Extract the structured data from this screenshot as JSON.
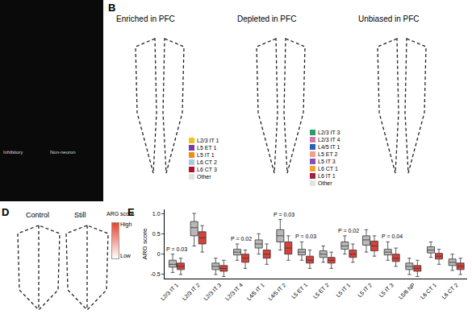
{
  "chart_data": {
    "type": "box",
    "ylabel": "ARG score",
    "categories": [
      "L2/3 IT 1",
      "L2/3 IT 2",
      "L2/3 IT 3",
      "L2/3 IT 4",
      "L4/5 IT 1",
      "L4/5 IT 2",
      "L5 ET 1",
      "L5 ET 2",
      "L5 IT 1",
      "L5 IT 2",
      "L5 IT 3",
      "L5/6 NP",
      "L6 CT 1",
      "L6 CT 2"
    ],
    "series": [
      {
        "name": "Control",
        "color": "#b8b8b8",
        "q1": [
          -0.32,
          0.45,
          -0.38,
          -0.02,
          0.15,
          0.3,
          -0.02,
          -0.08,
          0.12,
          0.22,
          -0.02,
          -0.38,
          0.03,
          -0.28
        ],
        "median": [
          -0.25,
          0.65,
          -0.3,
          0.05,
          0.25,
          0.45,
          0.05,
          0.0,
          0.2,
          0.35,
          0.05,
          -0.3,
          0.1,
          -0.2
        ],
        "q3": [
          -0.15,
          0.8,
          -0.22,
          0.12,
          0.35,
          0.6,
          0.12,
          0.08,
          0.3,
          0.45,
          0.12,
          -0.22,
          0.18,
          -0.12
        ],
        "lowerfence": [
          -0.45,
          0.2,
          -0.5,
          -0.15,
          0.0,
          0.1,
          -0.15,
          -0.2,
          0.0,
          0.05,
          -0.15,
          -0.5,
          -0.08,
          -0.4
        ],
        "upperfence": [
          0.0,
          1.0,
          -0.1,
          0.25,
          0.5,
          0.85,
          0.3,
          0.2,
          0.45,
          0.6,
          0.3,
          -0.1,
          0.3,
          0.0
        ]
      },
      {
        "name": "Still",
        "color": "#d9403a",
        "q1": [
          -0.38,
          0.25,
          -0.42,
          -0.2,
          -0.1,
          0.0,
          -0.22,
          -0.22,
          -0.08,
          0.08,
          -0.18,
          -0.42,
          -0.12,
          -0.38
        ],
        "median": [
          -0.3,
          0.4,
          -0.35,
          -0.1,
          0.0,
          0.15,
          -0.15,
          -0.15,
          0.0,
          0.2,
          -0.1,
          -0.35,
          -0.05,
          -0.3
        ],
        "q3": [
          -0.22,
          0.55,
          -0.28,
          0.0,
          0.1,
          0.3,
          -0.05,
          -0.08,
          0.1,
          0.32,
          0.0,
          -0.28,
          0.02,
          -0.22
        ],
        "lowerfence": [
          -0.5,
          0.05,
          -0.55,
          -0.35,
          -0.25,
          -0.15,
          -0.35,
          -0.35,
          -0.2,
          -0.05,
          -0.3,
          -0.55,
          -0.25,
          -0.5
        ],
        "upperfence": [
          -0.1,
          0.7,
          -0.15,
          0.1,
          0.25,
          0.45,
          0.1,
          0.05,
          0.25,
          0.45,
          0.15,
          -0.15,
          0.12,
          -0.1
        ]
      }
    ],
    "annotations": [
      {
        "category": "L2/3 IT 1",
        "text": "P = 0.03"
      },
      {
        "category": "L2/3 IT 4",
        "text": "P = 0.02"
      },
      {
        "category": "L4/5 IT 2",
        "text": "P = 0.03"
      },
      {
        "category": "L5 ET 1",
        "text": "P = 0.03"
      },
      {
        "category": "L5 IT 1",
        "text": "P = 0.02"
      },
      {
        "category": "L5 IT 3",
        "text": "P = 0.04"
      }
    ],
    "ylim": [
      -0.6,
      1.1
    ],
    "yticks": [
      -0.5,
      0,
      0.5,
      {
        "value": 1,
        "label": "1.0"
      }
    ],
    "grid": false
  },
  "panels": {
    "A": {
      "headers": [
        "Inhibitory",
        "Non-neuron"
      ]
    },
    "B": {
      "label": "B",
      "maps": [
        {
          "title": "Enriched in PFC",
          "legend": [
            {
              "name": "L2/3 IT 1",
              "color": "#f2c21b"
            },
            {
              "name": "L5 ET 1",
              "color": "#7a3c9e"
            },
            {
              "name": "L5 IT 1",
              "color": "#f08a1c"
            },
            {
              "name": "L6 CT 2",
              "color": "#a9c9e8"
            },
            {
              "name": "L6 CT 3",
              "color": "#b3122c"
            },
            {
              "name": "Other",
              "color": "#e2e2e2"
            }
          ]
        },
        {
          "title": "Depleted in PFC",
          "legend": [
            {
              "name": "L2/3 IT 3",
              "color": "#2a9d6a"
            },
            {
              "name": "L2/3 IT 4",
              "color": "#d07ab0"
            },
            {
              "name": "L4/5 IT 1",
              "color": "#2562b0"
            },
            {
              "name": "L5 ET 2",
              "color": "#f2a08e"
            },
            {
              "name": "L5 IT 3",
              "color": "#8a4fb3"
            },
            {
              "name": "L6 CT 1",
              "color": "#f0a232"
            },
            {
              "name": "L6 IT 1",
              "color": "#a11f45"
            },
            {
              "name": "Other",
              "color": "#e2e2e2"
            }
          ]
        },
        {
          "title": "Unbiased in PFC",
          "legend": []
        }
      ]
    },
    "D": {
      "label": "D",
      "titles": [
        "Control",
        "Still"
      ],
      "colorbar_title": "ARG score",
      "high": "High",
      "low": "Low"
    },
    "E": {
      "label": "E"
    }
  }
}
